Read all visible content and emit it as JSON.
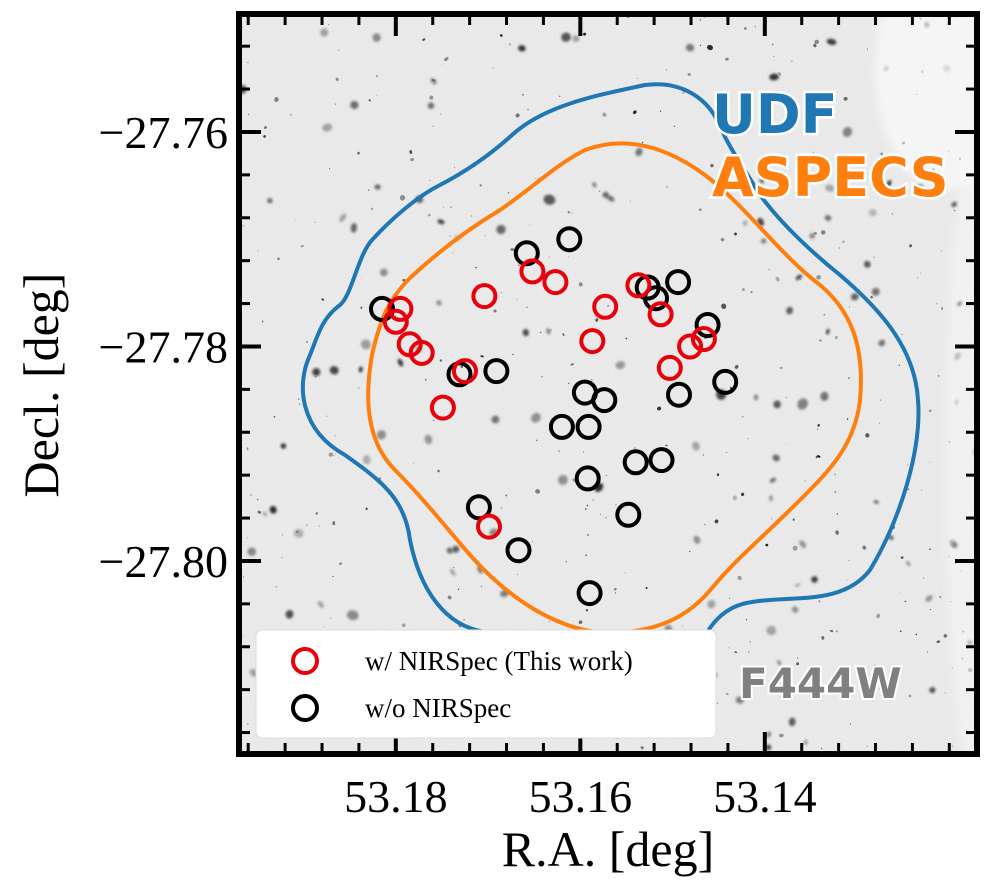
{
  "chart_data": {
    "type": "scatter",
    "title": "",
    "xlabel": "R.A. [deg]",
    "ylabel": "Decl. [deg]",
    "xlim": [
      53.197,
      53.117
    ],
    "ylim": [
      -27.818,
      -27.749
    ],
    "x_ticks": [
      {
        "value": 53.18,
        "label": "53.18"
      },
      {
        "value": 53.16,
        "label": "53.16"
      },
      {
        "value": 53.14,
        "label": "53.14"
      }
    ],
    "y_ticks": [
      {
        "value": -27.76,
        "label": "−27.76"
      },
      {
        "value": -27.78,
        "label": "−27.78"
      },
      {
        "value": -27.8,
        "label": "−27.80"
      }
    ],
    "background": "F444W grayscale image",
    "annotations": [
      {
        "text": "UDF",
        "color": "#1f77b4"
      },
      {
        "text": "ASPECS",
        "color": "#ff7f0e"
      },
      {
        "text": "F444W",
        "color": "#808080"
      }
    ],
    "legend": {
      "position": "lower-left",
      "entries": [
        {
          "label": "w/ NIRSpec (This work)",
          "color": "#e8000b"
        },
        {
          "label": "w/o NIRSpec",
          "color": "#000000"
        }
      ]
    },
    "series": [
      {
        "name": "w/ NIRSpec (This work)",
        "color": "#e8000b",
        "points": [
          [
            53.1795,
            -27.7765
          ],
          [
            53.18,
            -27.7777
          ],
          [
            53.1785,
            -27.7798
          ],
          [
            53.1772,
            -27.7806
          ],
          [
            53.1749,
            -27.7857
          ],
          [
            53.1725,
            -27.7823
          ],
          [
            53.1704,
            -27.7753
          ],
          [
            53.1573,
            -27.7763
          ],
          [
            53.1652,
            -27.773
          ],
          [
            53.1627,
            -27.774
          ],
          [
            53.1587,
            -27.7795
          ],
          [
            53.1537,
            -27.7743
          ],
          [
            53.1513,
            -27.777
          ],
          [
            53.1503,
            -27.782
          ],
          [
            53.1481,
            -27.78
          ],
          [
            53.1466,
            -27.7793
          ],
          [
            53.1699,
            -27.7968
          ]
        ]
      },
      {
        "name": "w/o NIRSpec",
        "color": "#000000",
        "points": [
          [
            53.1815,
            -27.7765
          ],
          [
            53.1658,
            -27.7713
          ],
          [
            53.1612,
            -27.77
          ],
          [
            53.1518,
            -27.7755
          ],
          [
            53.1527,
            -27.7745
          ],
          [
            53.1494,
            -27.774
          ],
          [
            53.1462,
            -27.778
          ],
          [
            53.1493,
            -27.7845
          ],
          [
            53.1443,
            -27.7833
          ],
          [
            53.1731,
            -27.7826
          ],
          [
            53.1691,
            -27.7823
          ],
          [
            53.1595,
            -27.7843
          ],
          [
            53.1574,
            -27.785
          ],
          [
            53.1591,
            -27.7875
          ],
          [
            53.162,
            -27.7875
          ],
          [
            53.154,
            -27.7908
          ],
          [
            53.1512,
            -27.7906
          ],
          [
            53.1592,
            -27.7923
          ],
          [
            53.1548,
            -27.7957
          ],
          [
            53.171,
            -27.795
          ],
          [
            53.1667,
            -27.799
          ],
          [
            53.159,
            -27.803
          ]
        ]
      }
    ]
  }
}
